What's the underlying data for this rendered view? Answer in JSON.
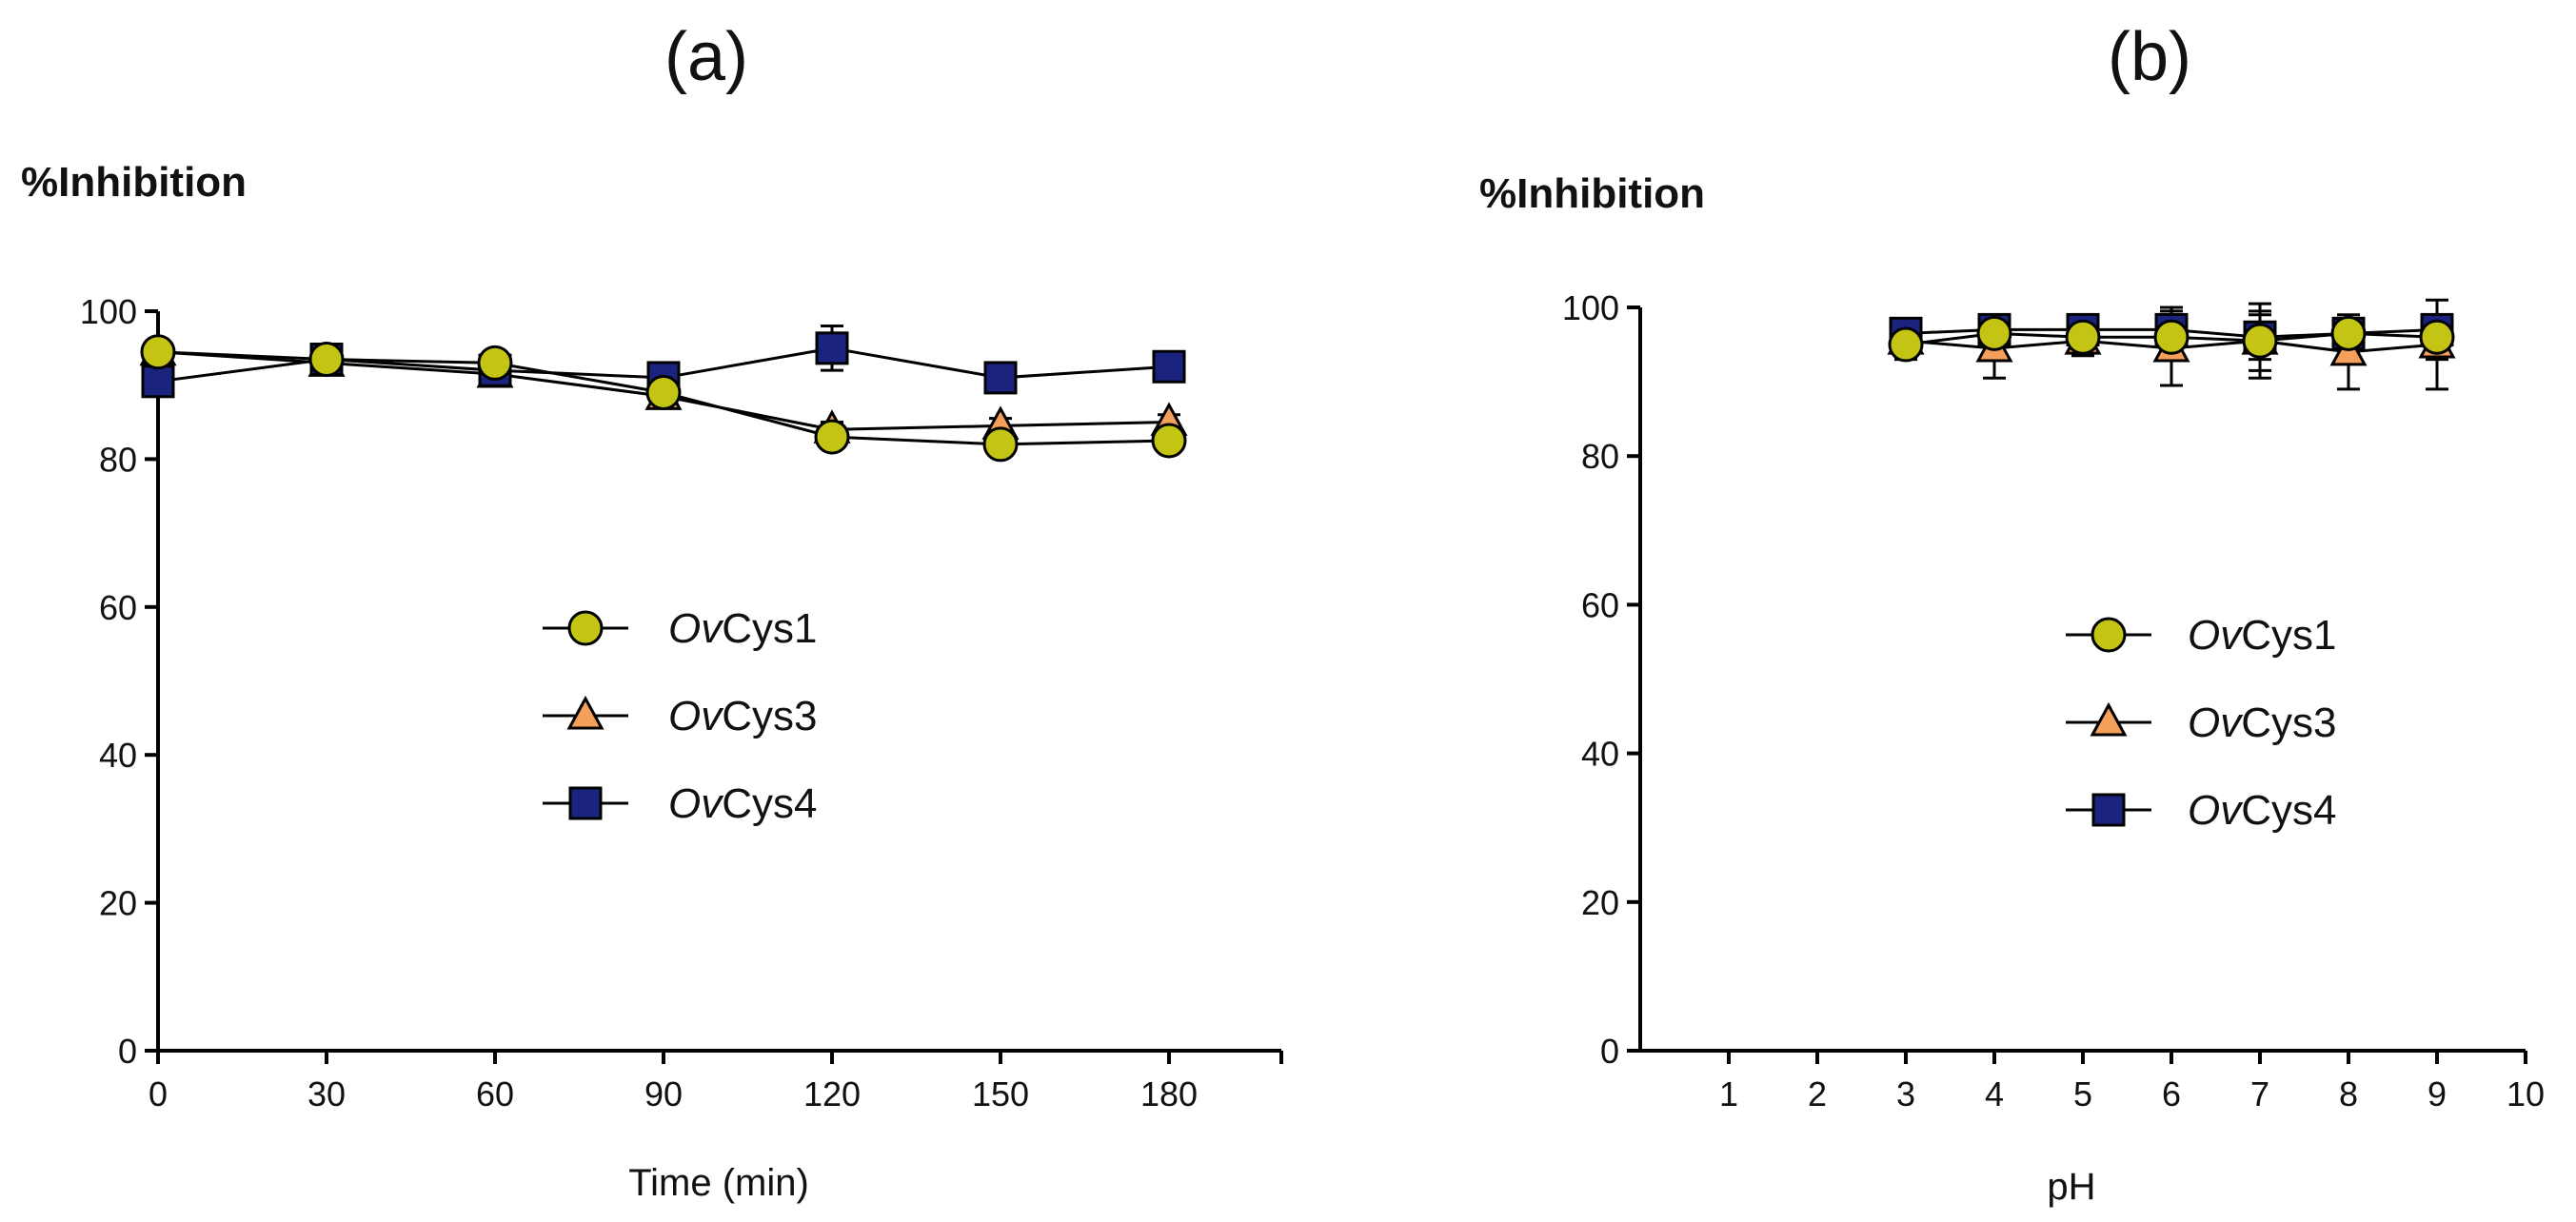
{
  "chart_data": [
    {
      "panel": "(a)",
      "type": "line",
      "title": "",
      "ylabel": "%Inhibition",
      "xlabel": "Time (min)",
      "xlim": [
        0,
        200
      ],
      "ylim": [
        0,
        100
      ],
      "xticks": [
        0,
        30,
        60,
        90,
        120,
        150,
        180
      ],
      "yticks": [
        0,
        20,
        40,
        60,
        80,
        100
      ],
      "legend_position": "center",
      "series": [
        {
          "name_italic": "Ov",
          "name_rest": "Cys1",
          "marker": "circle",
          "color": "#c4c414",
          "x": [
            0,
            30,
            60,
            90,
            120,
            150,
            180
          ],
          "y": [
            94.5,
            93.5,
            93,
            89,
            83,
            82,
            82.5
          ],
          "err": [
            1,
            1,
            1,
            1,
            1,
            1,
            1
          ]
        },
        {
          "name_italic": "Ov",
          "name_rest": "Cys3",
          "marker": "triangle",
          "color": "#f5a05a",
          "x": [
            0,
            30,
            60,
            90,
            120,
            150,
            180
          ],
          "y": [
            94.5,
            93,
            91.5,
            88.5,
            84,
            84.5,
            85
          ],
          "err": [
            1,
            1,
            1,
            1,
            1,
            1,
            1
          ]
        },
        {
          "name_italic": "Ov",
          "name_rest": "Cys4",
          "marker": "square",
          "color": "#1a237e",
          "x": [
            0,
            30,
            60,
            90,
            120,
            150,
            180
          ],
          "y": [
            90.5,
            93.5,
            92,
            91,
            95,
            91,
            92.5
          ],
          "err": [
            1,
            1,
            1,
            1,
            3,
            1,
            1
          ]
        }
      ]
    },
    {
      "panel": "(b)",
      "type": "line",
      "title": "",
      "ylabel": "%Inhibition",
      "xlabel": "pH",
      "xlim": [
        0,
        10
      ],
      "ylim": [
        0,
        100
      ],
      "xticks": [
        1,
        2,
        3,
        4,
        5,
        6,
        7,
        8,
        9,
        10
      ],
      "yticks": [
        0,
        20,
        40,
        60,
        80,
        100
      ],
      "legend_position": "center-right",
      "series": [
        {
          "name_italic": "Ov",
          "name_rest": "Cys1",
          "marker": "circle",
          "color": "#c4c414",
          "x": [
            3,
            4,
            5,
            6,
            7,
            8,
            9
          ],
          "y": [
            95,
            96.5,
            96,
            96,
            95.5,
            96.5,
            96
          ],
          "err": [
            2,
            2,
            2,
            3,
            4,
            2,
            3
          ]
        },
        {
          "name_italic": "Ov",
          "name_rest": "Cys3",
          "marker": "triangle",
          "color": "#f5a05a",
          "x": [
            3,
            4,
            5,
            6,
            7,
            8,
            9
          ],
          "y": [
            95.5,
            94.5,
            95.5,
            94.5,
            95.5,
            94,
            95
          ],
          "err": [
            2,
            4,
            2,
            5,
            5,
            5,
            6
          ]
        },
        {
          "name_italic": "Ov",
          "name_rest": "Cys4",
          "marker": "square",
          "color": "#1a237e",
          "x": [
            3,
            4,
            5,
            6,
            7,
            8,
            9
          ],
          "y": [
            96.5,
            97,
            97,
            97,
            96,
            96.5,
            97
          ],
          "err": [
            2,
            2,
            2,
            3,
            3,
            2,
            2
          ]
        }
      ]
    }
  ]
}
